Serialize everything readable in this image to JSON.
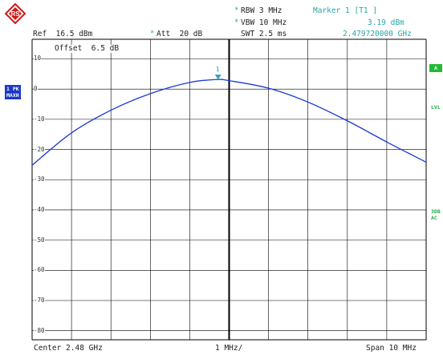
{
  "header": {
    "rbw": "RBW 3 MHz",
    "vbw": "VBW 10 MHz",
    "swt": "SWT 2.5 ms",
    "ref": "Ref  16.5 dBm",
    "att": "Att  20 dB",
    "marker_title": "Marker 1 [T1 ]",
    "marker_level": "3.19 dBm",
    "marker_freq": "2.479720000 GHz",
    "offset": "Offset  6.5 dB"
  },
  "side": {
    "trace_badge_line1": "1 PK",
    "trace_badge_line2": "MAXH",
    "a_box": "A",
    "lvl": "LVL",
    "db3_line1": "3DB",
    "db3_line2": "AC"
  },
  "footer": {
    "center": "Center 2.48 GHz",
    "div": "1 MHz/",
    "span": "Span 10 MHz"
  },
  "marker_label": "1",
  "y_ticks": [
    "10",
    "0",
    "-10",
    "-20",
    "-30",
    "-40",
    "-50",
    "-60",
    "-70",
    "-80"
  ],
  "colors": {
    "trace": "#1a3ad6",
    "grid": "#000000",
    "marker": "#2aa6a6",
    "badge": "#1a37c9",
    "green": "#22bb33"
  },
  "chart_data": {
    "type": "line",
    "x_unit": "GHz",
    "y_unit": "dBm",
    "xlim": [
      2.475,
      2.485
    ],
    "ylim": [
      -83,
      16.5
    ],
    "series": [
      {
        "x": [
          2.475,
          2.476,
          2.477,
          2.478,
          2.479,
          2.4797,
          2.48,
          2.481,
          2.482,
          2.483,
          2.484,
          2.485
        ],
        "y": [
          -25.2,
          -14.5,
          -7.0,
          -1.5,
          2.2,
          3.19,
          2.8,
          0.3,
          -4.3,
          -10.5,
          -17.5,
          -24.2
        ]
      }
    ],
    "marker": {
      "x": 2.47972,
      "y": 3.19
    }
  }
}
